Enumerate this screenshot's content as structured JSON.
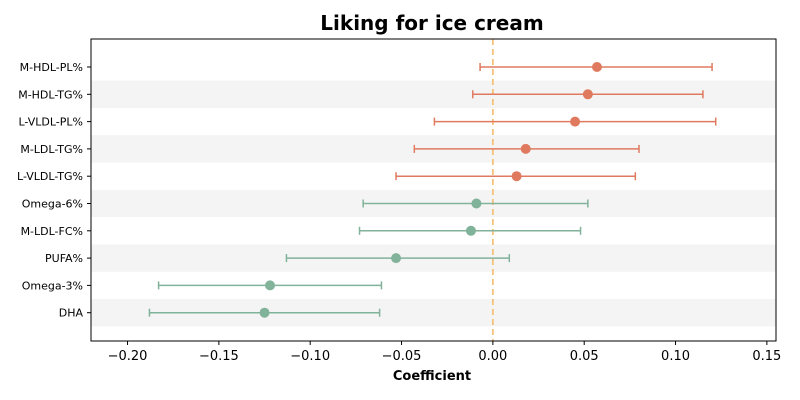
{
  "chart_data": {
    "type": "forest",
    "title": "Liking for ice cream",
    "xlabel": "Coefficient",
    "ylabel": "",
    "xlim": [
      -0.22,
      0.155
    ],
    "xticks": [
      -0.2,
      -0.15,
      -0.1,
      -0.05,
      0.0,
      0.05,
      0.1,
      0.15
    ],
    "xtick_labels": [
      "−0.20",
      "−0.15",
      "−0.10",
      "−0.05",
      "0.00",
      "0.05",
      "0.10",
      "0.15"
    ],
    "reference_line": {
      "x": 0.0,
      "style": "dashed",
      "color": "#f5c27a"
    },
    "grid": false,
    "alternating_row_shading": true,
    "colors": {
      "positive": "#e07a5f",
      "negative": "#81b29a",
      "row_shade": "#f4f4f4"
    },
    "points": [
      {
        "label": "M-HDL-PL%",
        "estimate": 0.057,
        "ci_low": -0.007,
        "ci_high": 0.12
      },
      {
        "label": "M-HDL-TG%",
        "estimate": 0.052,
        "ci_low": -0.011,
        "ci_high": 0.115
      },
      {
        "label": "L-VLDL-PL%",
        "estimate": 0.045,
        "ci_low": -0.032,
        "ci_high": 0.122
      },
      {
        "label": "M-LDL-TG%",
        "estimate": 0.018,
        "ci_low": -0.043,
        "ci_high": 0.08
      },
      {
        "label": "L-VLDL-TG%",
        "estimate": 0.013,
        "ci_low": -0.053,
        "ci_high": 0.078
      },
      {
        "label": "Omega-6%",
        "estimate": -0.009,
        "ci_low": -0.071,
        "ci_high": 0.052
      },
      {
        "label": "M-LDL-FC%",
        "estimate": -0.012,
        "ci_low": -0.073,
        "ci_high": 0.048
      },
      {
        "label": "PUFA%",
        "estimate": -0.053,
        "ci_low": -0.113,
        "ci_high": 0.009
      },
      {
        "label": "Omega-3%",
        "estimate": -0.122,
        "ci_low": -0.183,
        "ci_high": -0.061
      },
      {
        "label": "DHA",
        "estimate": -0.125,
        "ci_low": -0.188,
        "ci_high": -0.062
      }
    ]
  }
}
